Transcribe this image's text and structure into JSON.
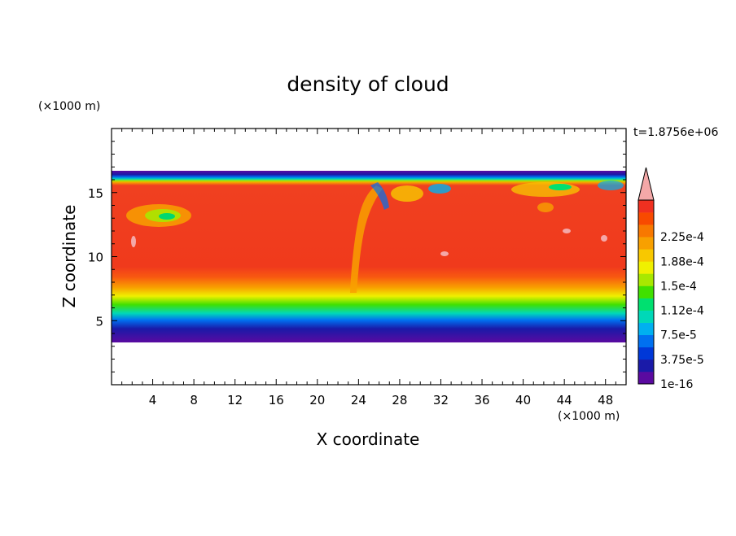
{
  "chart_data": {
    "type": "heatmap",
    "title": "density of cloud",
    "xlabel": "X coordinate",
    "ylabel": "Z coordinate",
    "x_unit": "(×1000 m)",
    "y_unit": "(×1000 m)",
    "time_label": "t=1.8756e+06",
    "xlim": [
      0,
      50
    ],
    "ylim": [
      0,
      20
    ],
    "x_ticks": [
      4,
      8,
      12,
      16,
      20,
      24,
      28,
      32,
      36,
      40,
      44,
      48
    ],
    "y_ticks": [
      5,
      10,
      15
    ],
    "x_tick_labels": [
      "4",
      "8",
      "12",
      "16",
      "20",
      "24",
      "28",
      "32",
      "36",
      "40",
      "44",
      "48"
    ],
    "y_tick_labels": [
      "5",
      "10",
      "15"
    ],
    "cloud_layer": {
      "base_km": 3.3,
      "top_km": 16.7
    },
    "colorbar": {
      "levels": [
        "1e-16",
        "3.75e-5",
        "7.5e-5",
        "1.12e-4",
        "1.5e-4",
        "1.88e-4",
        "2.25e-4"
      ],
      "colors": [
        "#5a0aa0",
        "#1a1aa8",
        "#0038d8",
        "#0070f0",
        "#00b0f0",
        "#00d8b8",
        "#00e070",
        "#40e000",
        "#a8e800",
        "#f0f000",
        "#f8c800",
        "#f8a000",
        "#f87800",
        "#f84a00",
        "#f03020",
        "#f4a8a8"
      ],
      "extend": "max"
    }
  }
}
